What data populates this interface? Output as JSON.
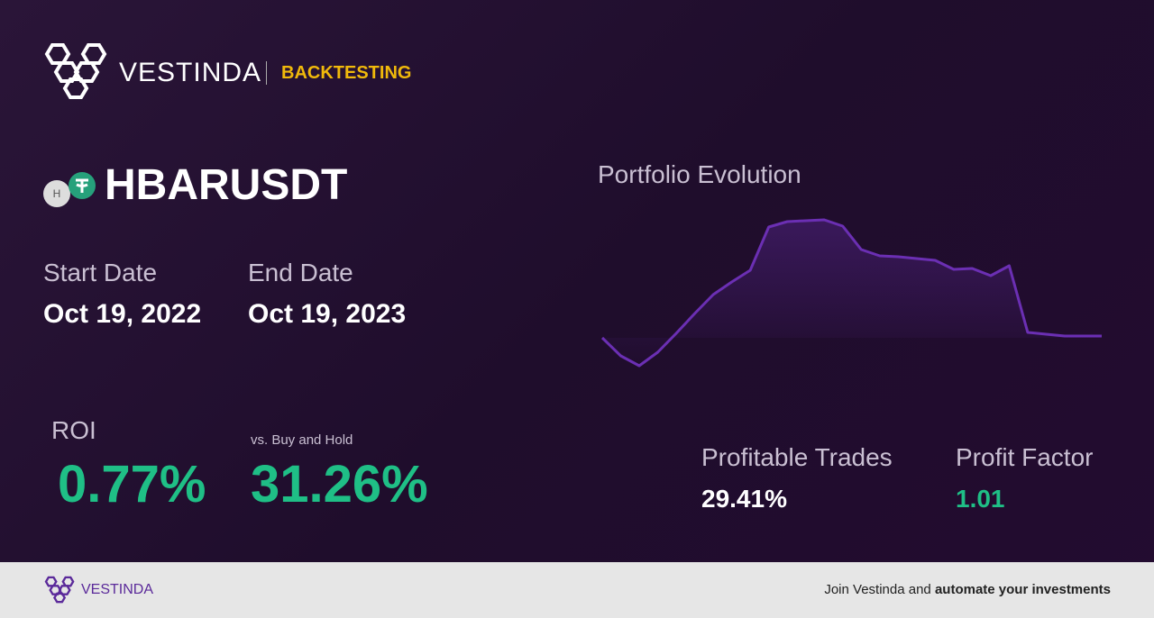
{
  "header": {
    "brand": "VESTINDA",
    "section": "BACKTESTING"
  },
  "pair": {
    "icon_letter": "H",
    "symbol": "HBARUSDT"
  },
  "dates": {
    "start_label": "Start Date",
    "start": "Oct 19, 2022",
    "end_label": "End Date",
    "end": "Oct 19, 2023"
  },
  "roi": {
    "label": "ROI",
    "value": "0.77%",
    "compare_label": "vs. Buy and Hold",
    "compare_value": "31.26%"
  },
  "stats": {
    "trades_label": "Profitable Trades",
    "trades_value": "29.41%",
    "factor_label": "Profit Factor",
    "factor_value": "1.01"
  },
  "chart_data": {
    "type": "line",
    "title": "Portfolio Evolution",
    "color": "#6b2fb3",
    "values": [
      100,
      90,
      84.5,
      92,
      102.5,
      113.5,
      124,
      131,
      137.5,
      161.5,
      164.5,
      165,
      165.5,
      162,
      149,
      145.5,
      145,
      144,
      143,
      138,
      138.5,
      134.5,
      140,
      103,
      102,
      101,
      101,
      101
    ],
    "ylim": [
      80,
      170
    ]
  },
  "footer": {
    "brand": "VESTINDA",
    "cta_start": "Join Vestinda and ",
    "cta_bold": "automate your investments"
  }
}
